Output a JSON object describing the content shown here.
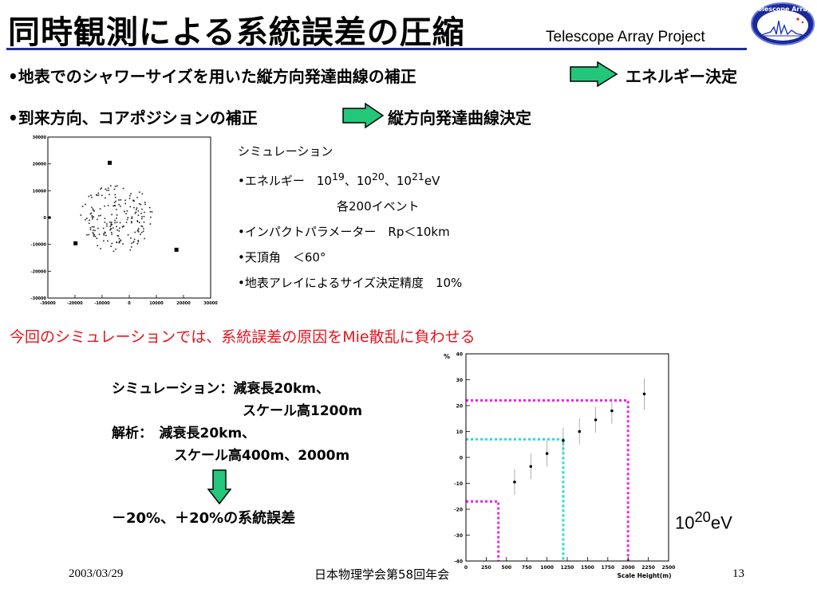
{
  "header": {
    "title": "同時観測による系統誤差の圧縮",
    "project": "Telescope Array Project",
    "logo_text": "Telescope Array"
  },
  "bullets": {
    "b1": "•地表でのシャワーサイズを用いた縦方向発達曲線の補正",
    "b1_result": "エネルギー決定",
    "b2": "•到来方向、コアポジションの補正",
    "b2_result": "縦方向発達曲線決定"
  },
  "simulation": {
    "heading": "シミュレーション",
    "energy_prefix": "•エネルギー　10",
    "e1": "19",
    "sep1": "、10",
    "e2": "20",
    "sep2": "、10",
    "e3": "21",
    "energy_unit": "eV",
    "events": "各200イベント",
    "impact": "•インパクトパラメーター　Rp＜10km",
    "zenith": "•天頂角　＜60°",
    "accuracy": "•地表アレイによるサイズ決定精度　10%"
  },
  "scatter_axes": {
    "x_ticks": [
      "-30000",
      "-20000",
      "-10000",
      "0",
      "10000",
      "20000",
      "30000"
    ],
    "y_ticks": [
      "30000",
      "20000",
      "10000",
      "0",
      "-10000",
      "-20000",
      "-30000"
    ]
  },
  "red_line": "今回のシミュレーションでは、系統誤差の原因をMie散乱に負わせる",
  "conditions": {
    "l1": "シミュレーション：減衰長20km、",
    "l2": "スケール高1200m",
    "l3": "解析：　減衰長20km、",
    "l4": "スケール高400m、2000m"
  },
  "result": "－20%、＋20%の系統誤差",
  "energy_label": {
    "base": "10",
    "exp": "20",
    "unit": "eV"
  },
  "chart_data": {
    "type": "scatter",
    "xlabel": "Scale Height(m)",
    "ylabel": "%",
    "xlim": [
      0,
      2500
    ],
    "ylim": [
      -40,
      40
    ],
    "x_ticks": [
      "0",
      "250",
      "500",
      "750",
      "1000",
      "1250",
      "1500",
      "1750",
      "2000",
      "2250",
      "2500"
    ],
    "y_ticks": [
      "40",
      "30",
      "20",
      "10",
      "0",
      "-10",
      "-20",
      "-30",
      "-40"
    ],
    "points": [
      {
        "x": 600,
        "y": -9.5,
        "err": 5
      },
      {
        "x": 800,
        "y": -3.5,
        "err": 5
      },
      {
        "x": 1000,
        "y": 1.5,
        "err": 5
      },
      {
        "x": 1200,
        "y": 6.5,
        "err": 5
      },
      {
        "x": 1400,
        "y": 10,
        "err": 5
      },
      {
        "x": 1600,
        "y": 14.5,
        "err": 5
      },
      {
        "x": 1800,
        "y": 18,
        "err": 5
      },
      {
        "x": 2200,
        "y": 24.5,
        "err": 6
      }
    ],
    "guides": [
      {
        "x": 400,
        "y": -17,
        "color": "#ee22ee"
      },
      {
        "x": 1200,
        "y": 7,
        "color": "#22dddd"
      },
      {
        "x": 2000,
        "y": 22,
        "color": "#ee22ee"
      }
    ],
    "grid": false
  },
  "footer": {
    "date": "2003/03/29",
    "conference": "日本物理学会第58回年会",
    "page": "13"
  },
  "colors": {
    "arrow_fill": "#22c77a",
    "accent_red": "#e8131b",
    "rule": "#1f2f8c"
  }
}
